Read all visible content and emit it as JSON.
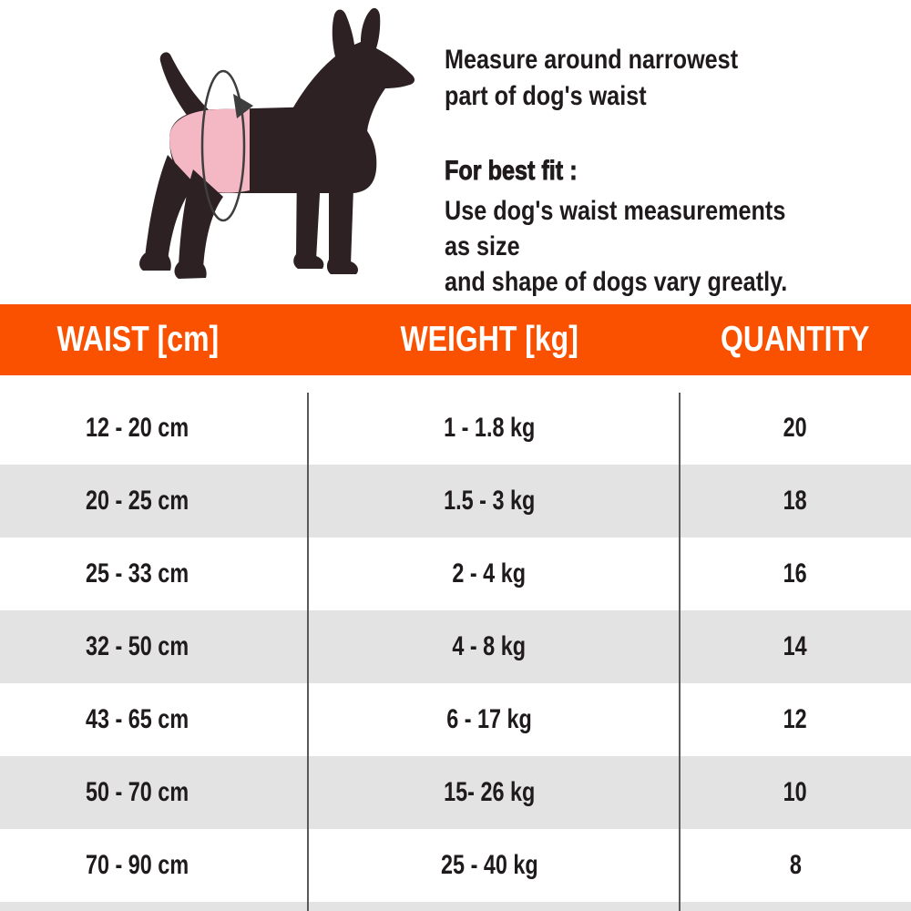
{
  "colors": {
    "accent_orange": "#fa5100",
    "row_alt_gray": "#e3e3e3",
    "text_dark": "#1f1a1b",
    "dog_silhouette": "#2d2123",
    "waist_band_pink": "#f3b8c4",
    "divider_gray": "#595959"
  },
  "instructions": {
    "measure_note": "Measure around narrowest\npart of dog's waist",
    "fit_title": "For best fit :",
    "fit_body": "Use dog's waist measurements as size\nand shape of dogs vary greatly."
  },
  "size_table": {
    "columns": [
      "WAIST [cm]",
      "WEIGHT [kg]",
      "QUANTITY"
    ],
    "rows": [
      {
        "waist": "12 - 20 cm",
        "weight": "1 - 1.8 kg",
        "quantity": "20"
      },
      {
        "waist": "20 - 25 cm",
        "weight": "1.5 - 3 kg",
        "quantity": "18"
      },
      {
        "waist": "25 - 33 cm",
        "weight": "2 - 4 kg",
        "quantity": "16"
      },
      {
        "waist": "32 - 50 cm",
        "weight": "4 - 8 kg",
        "quantity": "14"
      },
      {
        "waist": "43 - 65 cm",
        "weight": "6 - 17 kg",
        "quantity": "12"
      },
      {
        "waist": "50 - 70 cm",
        "weight": "15- 26 kg",
        "quantity": "10"
      },
      {
        "waist": "70 - 90 cm",
        "weight": "25 - 40 kg",
        "quantity": "8"
      }
    ]
  },
  "chart_data": {
    "type": "table",
    "title": "",
    "columns": [
      "WAIST [cm]",
      "WEIGHT [kg]",
      "QUANTITY"
    ],
    "rows": [
      [
        "12 - 20 cm",
        "1 - 1.8 kg",
        20
      ],
      [
        "20 - 25 cm",
        "1.5 - 3 kg",
        18
      ],
      [
        "25 - 33 cm",
        "2 - 4 kg",
        16
      ],
      [
        "32 - 50 cm",
        "4 - 8 kg",
        14
      ],
      [
        "43 - 65 cm",
        "6 - 17 kg",
        12
      ],
      [
        "50 - 70 cm",
        "15- 26 kg",
        10
      ],
      [
        "70 - 90 cm",
        "25 - 40 kg",
        8
      ]
    ],
    "layout": {
      "header_background": "#fa5100",
      "striped_rows": true,
      "column_dividers_x": [
        337,
        745
      ]
    }
  }
}
